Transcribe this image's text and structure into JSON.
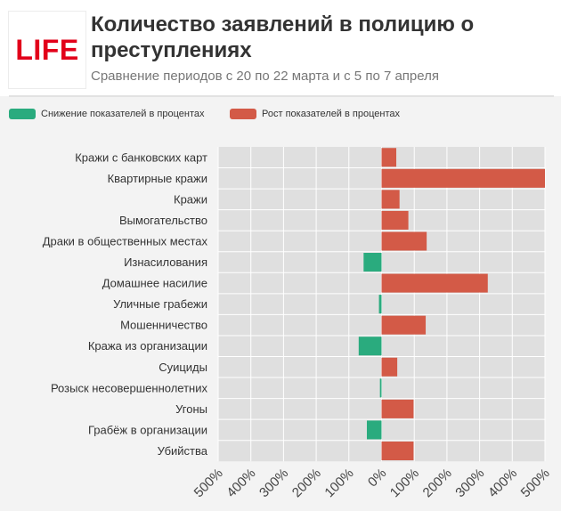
{
  "header": {
    "logo_text": "LIFE",
    "title": "Количество заявлений в полицию о преступлениях",
    "subtitle": "Сравнение периодов с 20 по 22 марта и с 5 по 7 апреля"
  },
  "colors": {
    "decrease": "#2aab7e",
    "increase": "#d35a47",
    "plot_bg": "#dfdfdf",
    "grid": "#ffffff",
    "page_bg": "#f3f3f3"
  },
  "legend": {
    "decrease_label": "Снижение показателей в процентах",
    "increase_label": "Рост показателей в процентах"
  },
  "chart_data": {
    "type": "bar",
    "orientation": "horizontal",
    "categories": [
      "Кражи с банковских карт",
      "Квартирные кражи",
      "Кражи",
      "Вымогательство",
      "Драки в общественных местах",
      "Изнасилования",
      "Домашнее насилие",
      "Уличные грабежи",
      "Мошенничество",
      "Кража из организации",
      "Суициды",
      "Розыск несовершеннолетних",
      "Угоны",
      "Грабёж в организации",
      "Убийства"
    ],
    "values": [
      45,
      510,
      55,
      82,
      138,
      -55,
      325,
      -8,
      135,
      -70,
      48,
      -5,
      98,
      -45,
      98
    ],
    "xlim": [
      -500,
      500
    ],
    "x_ticks": [
      "500%",
      "400%",
      "300%",
      "200%",
      "100%",
      "0%",
      "100%",
      "200%",
      "300%",
      "400%",
      "500%"
    ],
    "grid": true,
    "legend_position": "top-left"
  }
}
